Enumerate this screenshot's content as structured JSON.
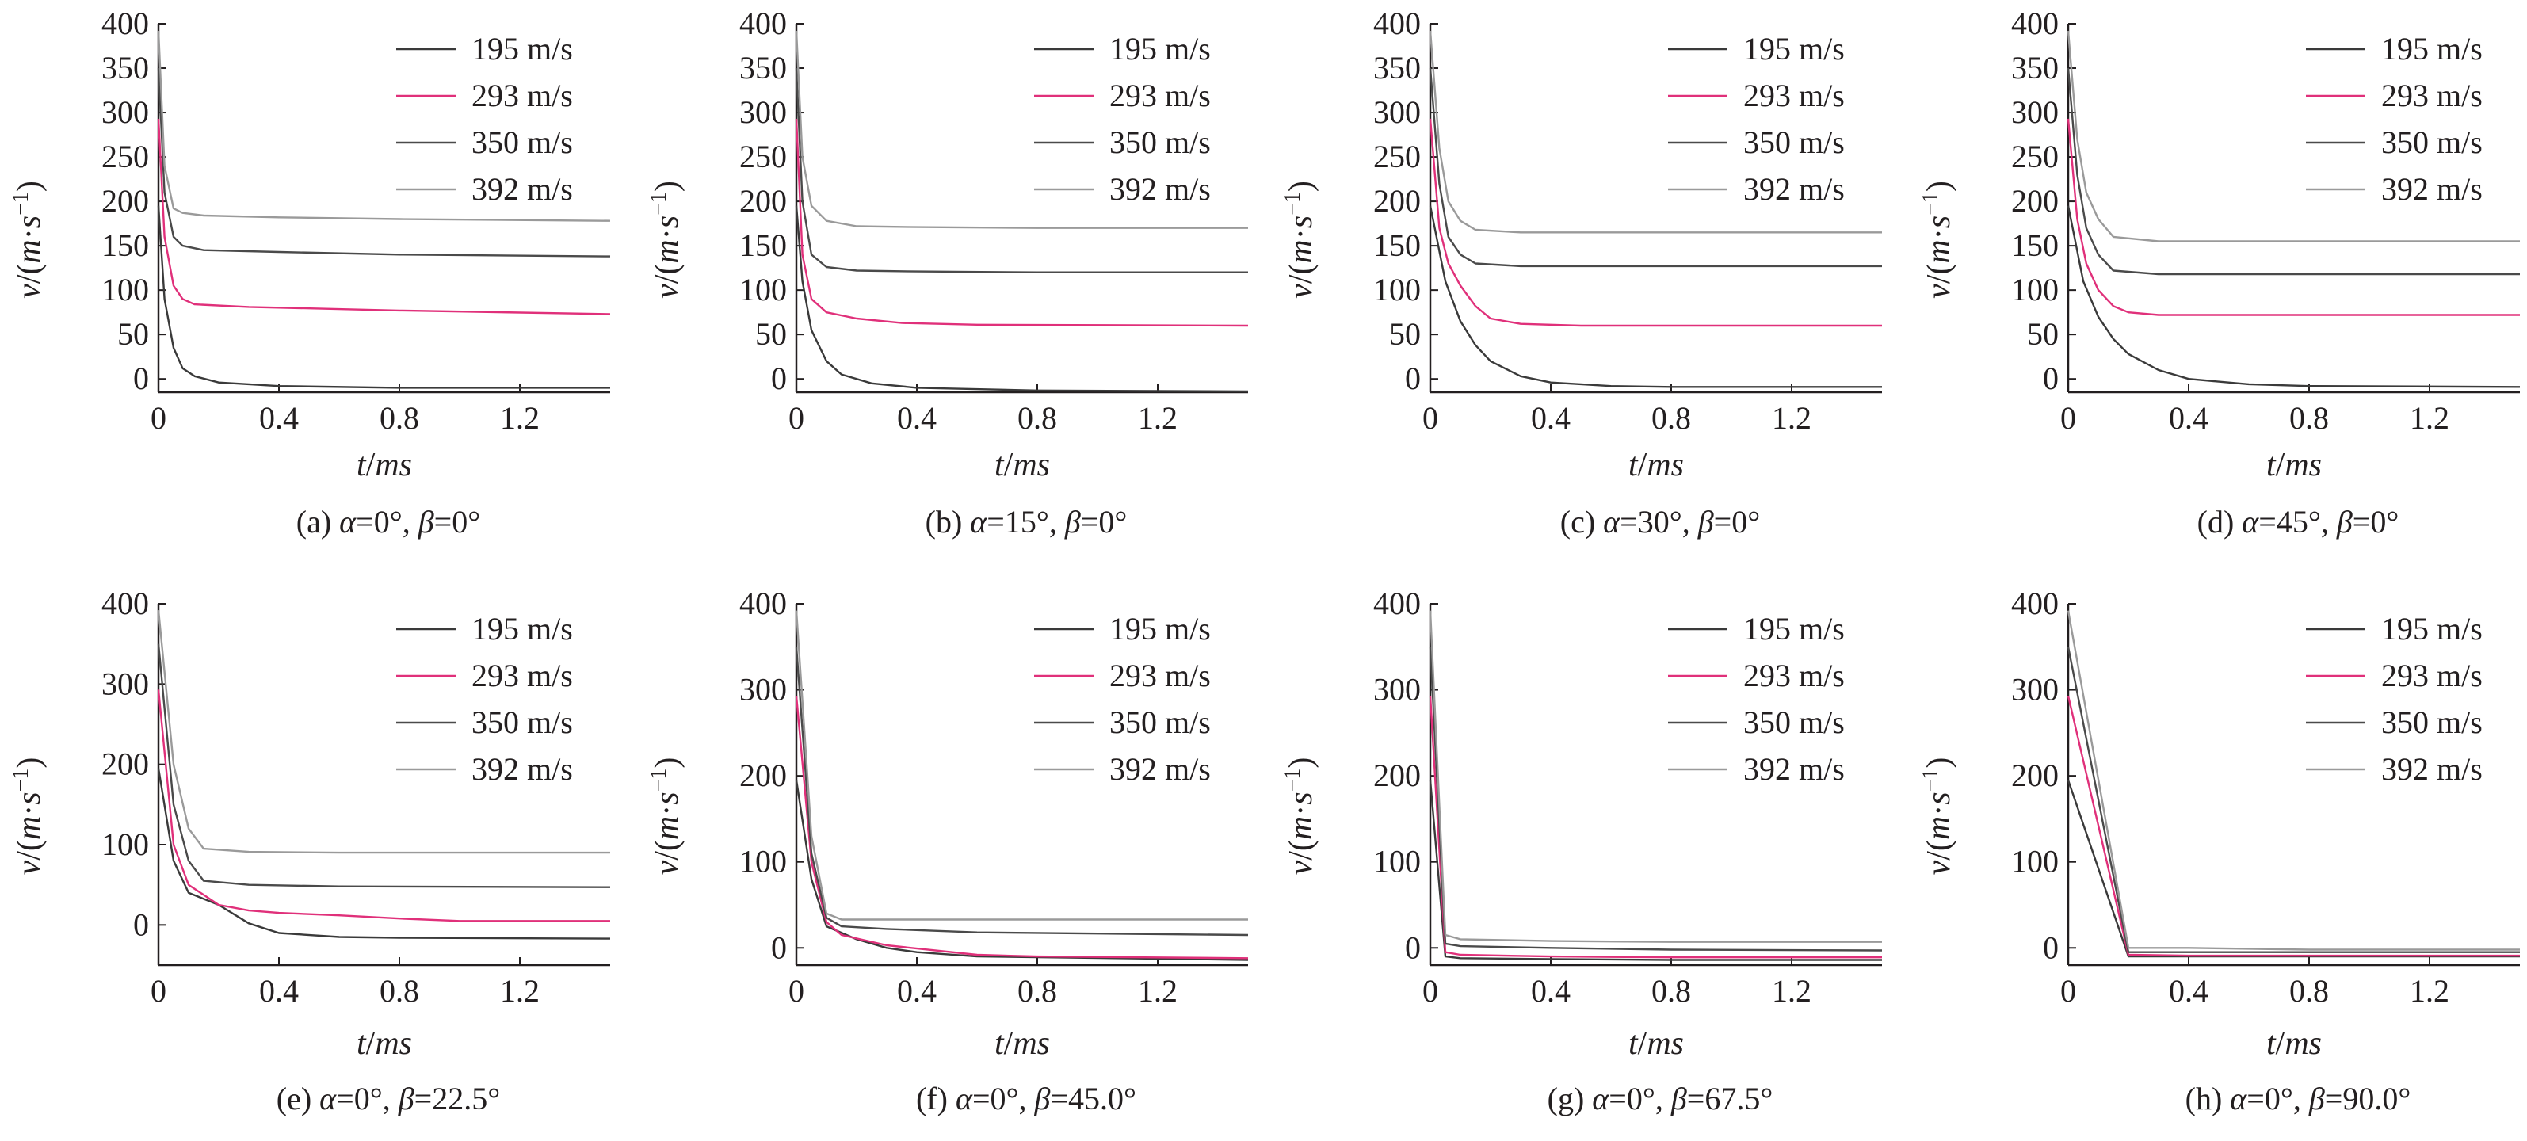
{
  "colors": {
    "195 m/s": "#3a3a3a",
    "293 m/s": "#e0307a",
    "350 m/s": "#4a4a4a",
    "392 m/s": "#9a9a9a",
    "axis": "#231f20",
    "aqua_tint": "#4fc3c9"
  },
  "chart_data": [
    {
      "type": "line",
      "caption": "(a) α=0°, β=0°",
      "xlabel": "t/ms",
      "ylabel": "v/(m·s⁻¹)",
      "xlim": [
        0,
        1.5
      ],
      "ylim": [
        -15,
        400
      ],
      "xticks": [
        "0",
        "0.4",
        "0.8",
        "1.2"
      ],
      "xtick_values": [
        0,
        0.4,
        0.8,
        1.2
      ],
      "yticks": [
        "0",
        "50",
        "100",
        "150",
        "200",
        "250",
        "300",
        "350",
        "400"
      ],
      "ytick_values": [
        0,
        50,
        100,
        150,
        200,
        250,
        300,
        350,
        400
      ],
      "legend": "top-right",
      "series": [
        {
          "name": "195 m/s",
          "x": [
            0,
            0.02,
            0.05,
            0.08,
            0.12,
            0.2,
            0.4,
            0.8,
            1.5
          ],
          "y": [
            195,
            90,
            35,
            12,
            3,
            -4,
            -8,
            -10,
            -10
          ]
        },
        {
          "name": "293 m/s",
          "x": [
            0,
            0.02,
            0.05,
            0.08,
            0.12,
            0.3,
            0.8,
            1.5
          ],
          "y": [
            293,
            160,
            105,
            90,
            84,
            81,
            77,
            73
          ]
        },
        {
          "name": "350 m/s",
          "x": [
            0,
            0.02,
            0.05,
            0.08,
            0.15,
            0.4,
            0.8,
            1.5
          ],
          "y": [
            350,
            210,
            160,
            150,
            145,
            143,
            140,
            138
          ]
        },
        {
          "name": "392 m/s",
          "x": [
            0,
            0.02,
            0.05,
            0.08,
            0.15,
            0.4,
            0.8,
            1.5
          ],
          "y": [
            392,
            240,
            192,
            187,
            184,
            182,
            180,
            178
          ]
        }
      ]
    },
    {
      "type": "line",
      "caption": "(b) α=15°, β=0°",
      "xlabel": "t/ms",
      "ylabel": "v/(m·s⁻¹)",
      "xlim": [
        0,
        1.5
      ],
      "ylim": [
        -15,
        400
      ],
      "xticks": [
        "0",
        "0.4",
        "0.8",
        "1.2"
      ],
      "xtick_values": [
        0,
        0.4,
        0.8,
        1.2
      ],
      "yticks": [
        "0",
        "50",
        "100",
        "150",
        "200",
        "250",
        "300",
        "350",
        "400"
      ],
      "ytick_values": [
        0,
        50,
        100,
        150,
        200,
        250,
        300,
        350,
        400
      ],
      "legend": "top-right",
      "series": [
        {
          "name": "195 m/s",
          "x": [
            0,
            0.02,
            0.05,
            0.1,
            0.15,
            0.25,
            0.4,
            0.8,
            1.5
          ],
          "y": [
            195,
            110,
            55,
            20,
            5,
            -5,
            -10,
            -13,
            -14
          ]
        },
        {
          "name": "293 m/s",
          "x": [
            0,
            0.02,
            0.05,
            0.1,
            0.2,
            0.35,
            0.6,
            1.5
          ],
          "y": [
            293,
            140,
            90,
            75,
            68,
            63,
            61,
            60
          ]
        },
        {
          "name": "350 m/s",
          "x": [
            0,
            0.02,
            0.05,
            0.1,
            0.2,
            0.4,
            0.8,
            1.5
          ],
          "y": [
            350,
            200,
            140,
            126,
            122,
            121,
            120,
            120
          ]
        },
        {
          "name": "392 m/s",
          "x": [
            0,
            0.02,
            0.05,
            0.1,
            0.2,
            0.4,
            0.8,
            1.5
          ],
          "y": [
            392,
            250,
            195,
            178,
            172,
            171,
            170,
            170
          ]
        }
      ]
    },
    {
      "type": "line",
      "caption": "(c) α=30°, β=0°",
      "xlabel": "t/ms",
      "ylabel": "v/(m·s⁻¹)",
      "xlim": [
        0,
        1.5
      ],
      "ylim": [
        -15,
        400
      ],
      "xticks": [
        "0",
        "0.4",
        "0.8",
        "1.2"
      ],
      "xtick_values": [
        0,
        0.4,
        0.8,
        1.2
      ],
      "yticks": [
        "0",
        "50",
        "100",
        "150",
        "200",
        "250",
        "300",
        "350",
        "400"
      ],
      "ytick_values": [
        0,
        50,
        100,
        150,
        200,
        250,
        300,
        350,
        400
      ],
      "legend": "top-right",
      "series": [
        {
          "name": "195 m/s",
          "x": [
            0,
            0.05,
            0.1,
            0.15,
            0.2,
            0.3,
            0.4,
            0.6,
            0.8,
            1.5
          ],
          "y": [
            195,
            110,
            65,
            38,
            20,
            3,
            -4,
            -8,
            -9,
            -9
          ]
        },
        {
          "name": "293 m/s",
          "x": [
            0,
            0.03,
            0.06,
            0.1,
            0.15,
            0.2,
            0.3,
            0.5,
            1.5
          ],
          "y": [
            293,
            170,
            130,
            105,
            82,
            68,
            62,
            60,
            60
          ]
        },
        {
          "name": "350 m/s",
          "x": [
            0,
            0.03,
            0.06,
            0.1,
            0.15,
            0.3,
            0.6,
            1.5
          ],
          "y": [
            350,
            220,
            160,
            140,
            130,
            127,
            127,
            127
          ]
        },
        {
          "name": "392 m/s",
          "x": [
            0,
            0.03,
            0.06,
            0.1,
            0.15,
            0.3,
            0.6,
            1.5
          ],
          "y": [
            392,
            260,
            200,
            178,
            168,
            165,
            165,
            165
          ]
        }
      ]
    },
    {
      "type": "line",
      "caption": "(d) α=45°, β=0°",
      "xlabel": "t/ms",
      "ylabel": "v/(m·s⁻¹)",
      "xlim": [
        0,
        1.5
      ],
      "ylim": [
        -15,
        400
      ],
      "xticks": [
        "0",
        "0.4",
        "0.8",
        "1.2"
      ],
      "xtick_values": [
        0,
        0.4,
        0.8,
        1.2
      ],
      "yticks": [
        "0",
        "50",
        "100",
        "150",
        "200",
        "250",
        "300",
        "350",
        "400"
      ],
      "ytick_values": [
        0,
        50,
        100,
        150,
        200,
        250,
        300,
        350,
        400
      ],
      "legend": "top-right",
      "series": [
        {
          "name": "195 m/s",
          "x": [
            0,
            0.05,
            0.1,
            0.15,
            0.2,
            0.3,
            0.4,
            0.6,
            0.8,
            1.5
          ],
          "y": [
            195,
            110,
            70,
            45,
            28,
            10,
            0,
            -6,
            -8,
            -9
          ]
        },
        {
          "name": "293 m/s",
          "x": [
            0,
            0.03,
            0.06,
            0.1,
            0.15,
            0.2,
            0.3,
            0.6,
            1.5
          ],
          "y": [
            293,
            180,
            130,
            100,
            82,
            75,
            72,
            72,
            72
          ]
        },
        {
          "name": "350 m/s",
          "x": [
            0,
            0.03,
            0.06,
            0.1,
            0.15,
            0.3,
            0.6,
            1.5
          ],
          "y": [
            350,
            230,
            170,
            140,
            122,
            118,
            118,
            118
          ]
        },
        {
          "name": "392 m/s",
          "x": [
            0,
            0.03,
            0.06,
            0.1,
            0.15,
            0.3,
            0.6,
            1.5
          ],
          "y": [
            392,
            270,
            210,
            180,
            160,
            155,
            155,
            155
          ]
        }
      ]
    },
    {
      "type": "line",
      "caption": "(e) α=0°, β=22.5°",
      "xlabel": "t/ms",
      "ylabel": "v/(m·s⁻¹)",
      "xlim": [
        0,
        1.5
      ],
      "ylim": [
        -50,
        400
      ],
      "xticks": [
        "0",
        "0.4",
        "0.8",
        "1.2"
      ],
      "xtick_values": [
        0,
        0.4,
        0.8,
        1.2
      ],
      "yticks": [
        "0",
        "100",
        "200",
        "300",
        "400"
      ],
      "ytick_values": [
        0,
        100,
        200,
        300,
        400
      ],
      "legend": "top-right",
      "series": [
        {
          "name": "195 m/s",
          "x": [
            0,
            0.05,
            0.1,
            0.2,
            0.3,
            0.4,
            0.6,
            0.8,
            1.5
          ],
          "y": [
            195,
            80,
            40,
            25,
            2,
            -10,
            -15,
            -16,
            -17
          ]
        },
        {
          "name": "293 m/s",
          "x": [
            0,
            0.05,
            0.1,
            0.2,
            0.3,
            0.4,
            0.6,
            0.8,
            1.0,
            1.5
          ],
          "y": [
            293,
            100,
            50,
            25,
            18,
            15,
            12,
            8,
            5,
            5
          ]
        },
        {
          "name": "350 m/s",
          "x": [
            0,
            0.05,
            0.1,
            0.15,
            0.3,
            0.6,
            1.5
          ],
          "y": [
            350,
            150,
            80,
            55,
            50,
            48,
            47
          ]
        },
        {
          "name": "392 m/s",
          "x": [
            0,
            0.05,
            0.1,
            0.15,
            0.3,
            0.6,
            1.5
          ],
          "y": [
            392,
            200,
            120,
            95,
            91,
            90,
            90
          ]
        }
      ]
    },
    {
      "type": "line",
      "caption": "(f) α=0°, β=45.0°",
      "xlabel": "t/ms",
      "ylabel": "v/(m·s⁻¹)",
      "xlim": [
        0,
        1.5
      ],
      "ylim": [
        -20,
        400
      ],
      "xticks": [
        "0",
        "0.4",
        "0.8",
        "1.2"
      ],
      "xtick_values": [
        0,
        0.4,
        0.8,
        1.2
      ],
      "yticks": [
        "0",
        "100",
        "200",
        "300",
        "400"
      ],
      "ytick_values": [
        0,
        100,
        200,
        300,
        400
      ],
      "legend": "top-right",
      "series": [
        {
          "name": "195 m/s",
          "x": [
            0,
            0.05,
            0.1,
            0.2,
            0.3,
            0.4,
            0.6,
            1.5
          ],
          "y": [
            195,
            80,
            25,
            10,
            0,
            -5,
            -10,
            -14
          ]
        },
        {
          "name": "293 m/s",
          "x": [
            0,
            0.05,
            0.1,
            0.15,
            0.3,
            0.6,
            0.8,
            1.5
          ],
          "y": [
            293,
            100,
            30,
            15,
            3,
            -8,
            -10,
            -12
          ]
        },
        {
          "name": "350 m/s",
          "x": [
            0,
            0.05,
            0.1,
            0.15,
            0.3,
            0.6,
            1.5
          ],
          "y": [
            350,
            110,
            35,
            25,
            22,
            18,
            15
          ]
        },
        {
          "name": "392 m/s",
          "x": [
            0,
            0.05,
            0.1,
            0.15,
            0.3,
            0.6,
            1.5
          ],
          "y": [
            392,
            130,
            40,
            33,
            33,
            33,
            33
          ]
        }
      ]
    },
    {
      "type": "line",
      "caption": "(g) α=0°, β=67.5°",
      "xlabel": "t/ms",
      "ylabel": "v/(m·s⁻¹)",
      "xlim": [
        0,
        1.5
      ],
      "ylim": [
        -20,
        400
      ],
      "xticks": [
        "0",
        "0.4",
        "0.8",
        "1.2"
      ],
      "xtick_values": [
        0,
        0.4,
        0.8,
        1.2
      ],
      "yticks": [
        "0",
        "100",
        "200",
        "300",
        "400"
      ],
      "ytick_values": [
        0,
        100,
        200,
        300,
        400
      ],
      "legend": "top-right",
      "series": [
        {
          "name": "195 m/s",
          "x": [
            0,
            0.05,
            0.1,
            0.4,
            0.8,
            1.5
          ],
          "y": [
            195,
            -10,
            -12,
            -13,
            -14,
            -14
          ]
        },
        {
          "name": "293 m/s",
          "x": [
            0,
            0.05,
            0.1,
            0.4,
            0.8,
            1.5
          ],
          "y": [
            293,
            -5,
            -8,
            -10,
            -11,
            -11
          ]
        },
        {
          "name": "350 m/s",
          "x": [
            0,
            0.05,
            0.1,
            0.4,
            0.8,
            1.5
          ],
          "y": [
            350,
            5,
            2,
            0,
            -2,
            -3
          ]
        },
        {
          "name": "392 m/s",
          "x": [
            0,
            0.05,
            0.1,
            0.4,
            0.8,
            1.5
          ],
          "y": [
            392,
            15,
            10,
            8,
            7,
            7
          ]
        }
      ]
    },
    {
      "type": "line",
      "caption": "(h) α=0°, β=90.0°",
      "xlabel": "t/ms",
      "ylabel": "v/(m·s⁻¹)",
      "xlim": [
        0,
        1.5
      ],
      "ylim": [
        -20,
        400
      ],
      "xticks": [
        "0",
        "0.4",
        "0.8",
        "1.2"
      ],
      "xtick_values": [
        0,
        0.4,
        0.8,
        1.2
      ],
      "yticks": [
        "0",
        "100",
        "200",
        "300",
        "400"
      ],
      "ytick_values": [
        0,
        100,
        200,
        300,
        400
      ],
      "legend": "top-right",
      "series": [
        {
          "name": "195 m/s",
          "x": [
            0,
            0.2,
            0.4,
            0.8,
            1.5
          ],
          "y": [
            195,
            -10,
            -10,
            -10,
            -10
          ]
        },
        {
          "name": "293 m/s",
          "x": [
            0,
            0.2,
            0.4,
            0.8,
            1.5
          ],
          "y": [
            293,
            -8,
            -9,
            -9,
            -9
          ]
        },
        {
          "name": "350 m/s",
          "x": [
            0,
            0.2,
            0.4,
            0.8,
            1.5
          ],
          "y": [
            350,
            -5,
            -5,
            -5,
            -5
          ]
        },
        {
          "name": "392 m/s",
          "x": [
            0,
            0.2,
            0.4,
            0.8,
            1.5
          ],
          "y": [
            392,
            0,
            0,
            -2,
            -2
          ]
        }
      ]
    }
  ]
}
